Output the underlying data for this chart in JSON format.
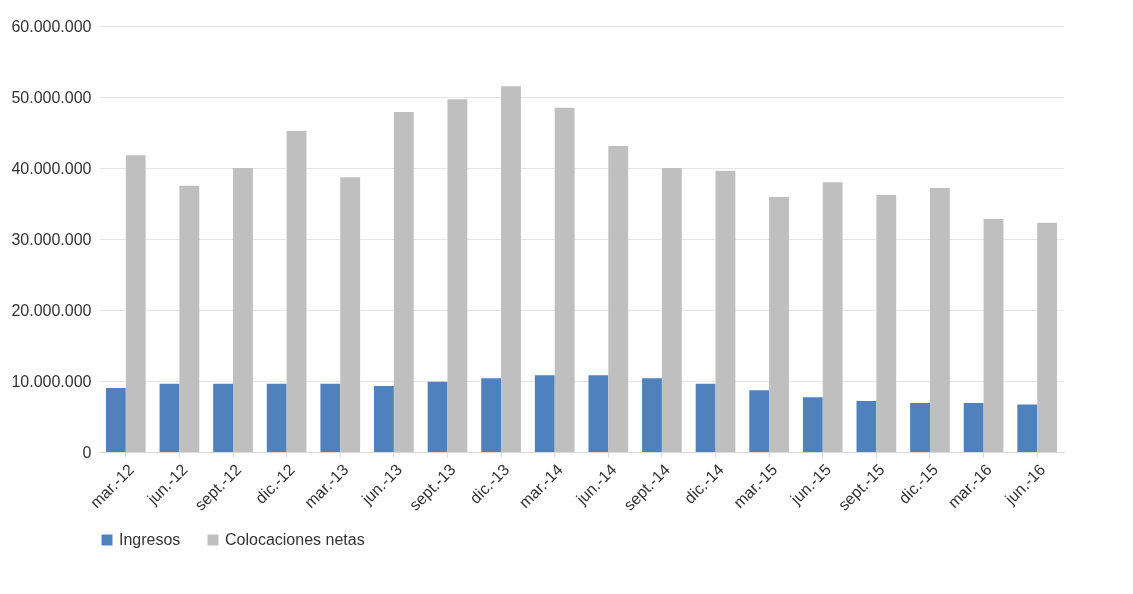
{
  "chart_data": {
    "type": "bar",
    "categories": [
      "mar.-12",
      "jun.-12",
      "sept.-12",
      "dic.-12",
      "mar.-13",
      "jun.-13",
      "sept.-13",
      "dic.-13",
      "mar.-14",
      "jun.-14",
      "sept.-14",
      "dic.-14",
      "mar.-15",
      "jun.-15",
      "sept.-15",
      "dic.-15",
      "mar.-16",
      "jun.-16"
    ],
    "series": [
      {
        "name": "Ingresos",
        "color": "#4f81bd",
        "values": [
          9000000,
          9600000,
          9600000,
          9600000,
          9600000,
          9300000,
          9900000,
          10400000,
          10800000,
          10800000,
          10400000,
          9600000,
          8700000,
          7700000,
          7200000,
          6900000,
          6900000,
          6700000
        ]
      },
      {
        "name": "Colocaciones netas",
        "color": "#bfbfbf",
        "values": [
          41800000,
          37500000,
          40000000,
          45200000,
          38700000,
          47900000,
          49700000,
          51500000,
          48500000,
          43100000,
          40000000,
          39600000,
          35900000,
          38000000,
          36200000,
          37200000,
          32800000,
          32300000
        ]
      }
    ],
    "ylim": [
      0,
      60000000
    ],
    "yticks": [
      {
        "value": 0,
        "label": "0"
      },
      {
        "value": 10000000,
        "label": "10.000.000"
      },
      {
        "value": 20000000,
        "label": "20.000.000"
      },
      {
        "value": 30000000,
        "label": "30.000.000"
      },
      {
        "value": 40000000,
        "label": "40.000.000"
      },
      {
        "value": 50000000,
        "label": "50.000.000"
      },
      {
        "value": 60000000,
        "label": "60.000.000"
      }
    ],
    "grid": "y",
    "legend": "bottom"
  }
}
